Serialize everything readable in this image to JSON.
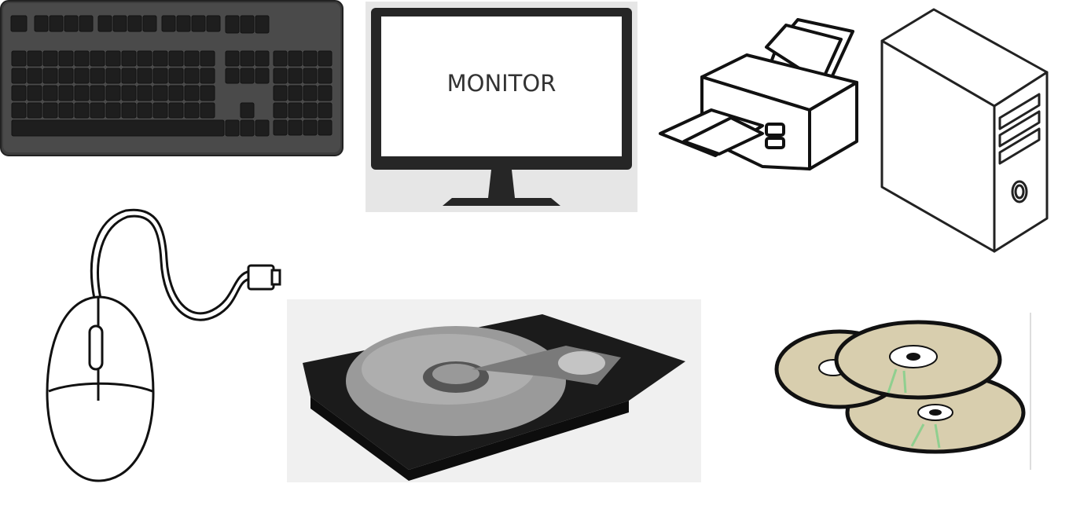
{
  "monitor": {
    "label": "MONITOR"
  }
}
